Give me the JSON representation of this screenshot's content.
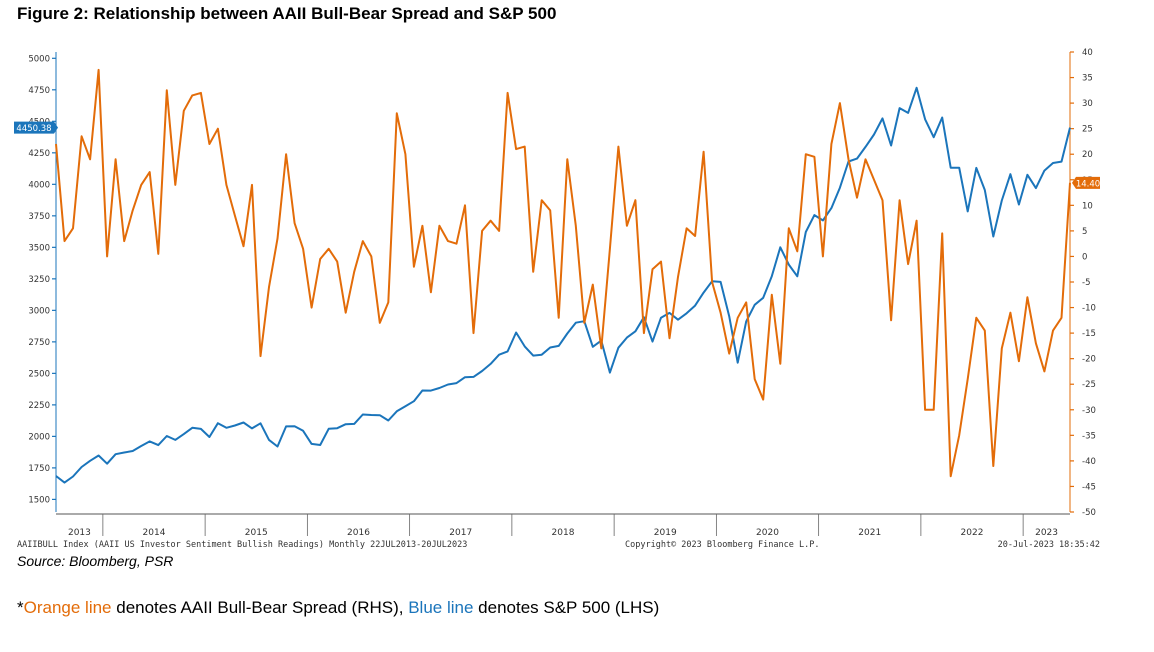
{
  "figure_title": "Figure 2: Relationship between AAII Bull-Bear Spread and S&P 500",
  "source_line": "Source: Bloomberg, PSR",
  "note": {
    "prefix": "*",
    "orange_label": "Orange line",
    "orange_text": " denotes AAII Bull-Bear Spread (RHS), ",
    "blue_label": "Blue line",
    "blue_text": " denotes S&P 500 (LHS)"
  },
  "footer": {
    "left": "AAIIBULL Index (AAII US Investor Sentiment Bullish Readings)  Monthly 22JUL2013-20JUL2023",
    "center": "Copyright© 2023 Bloomberg Finance L.P.",
    "right": "20-Jul-2023 18:35:42"
  },
  "chart_data": {
    "type": "line",
    "start_month": "2013-07",
    "end_month": "2023-07",
    "x_labels": [
      "2013",
      "2014",
      "2015",
      "2016",
      "2017",
      "2018",
      "2019",
      "2020",
      "2021",
      "2022",
      "2023"
    ],
    "y_left": {
      "ticks": [
        1500,
        1750,
        2000,
        2250,
        2500,
        2750,
        3000,
        3250,
        3500,
        3750,
        4000,
        4250,
        4500,
        4750,
        5000
      ],
      "min": 1400,
      "max": 5050
    },
    "y_right": {
      "ticks": [
        -50,
        -45,
        -40,
        -35,
        -30,
        -25,
        -20,
        -15,
        -10,
        -5,
        0,
        5,
        10,
        15,
        20,
        25,
        30,
        35,
        40
      ],
      "min": -50,
      "max": 40
    },
    "grid": false,
    "series": [
      {
        "name": "S&P 500",
        "axis": "left",
        "color": "#1b75bb",
        "last_value_label": "4450.38",
        "values": [
          1686,
          1633,
          1682,
          1757,
          1806,
          1848,
          1783,
          1859,
          1872,
          1884,
          1924,
          1960,
          1931,
          2003,
          1972,
          2018,
          2068,
          2059,
          1995,
          2105,
          2068,
          2086,
          2110,
          2063,
          2104,
          1972,
          1920,
          2079,
          2080,
          2044,
          1940,
          1932,
          2060,
          2065,
          2097,
          2099,
          2174,
          2170,
          2168,
          2126,
          2199,
          2239,
          2279,
          2364,
          2363,
          2384,
          2412,
          2423,
          2470,
          2472,
          2519,
          2575,
          2648,
          2674,
          2824,
          2714,
          2641,
          2648,
          2705,
          2718,
          2816,
          2902,
          2914,
          2711,
          2760,
          2506,
          2704,
          2784,
          2834,
          2946,
          2752,
          2942,
          2980,
          2926,
          2977,
          3038,
          3141,
          3231,
          3226,
          2954,
          2585,
          2912,
          3044,
          3100,
          3271,
          3500,
          3363,
          3270,
          3622,
          3756,
          3714,
          3811,
          3973,
          4181,
          4204,
          4297,
          4395,
          4523,
          4308,
          4605,
          4567,
          4766,
          4516,
          4374,
          4530,
          4132,
          4132,
          3785,
          4130,
          3955,
          3586,
          3872,
          4080,
          3840,
          4076,
          3970,
          4109,
          4169,
          4180,
          4450
        ]
      },
      {
        "name": "AAII Bull-Bear Spread",
        "axis": "right",
        "color": "#e36c09",
        "last_value_label": "14.40",
        "values": [
          22,
          3,
          5.5,
          23.5,
          19,
          36.5,
          0,
          19,
          3,
          9,
          14,
          16.5,
          0.5,
          32.5,
          14,
          28.5,
          31.5,
          32,
          22,
          25,
          14,
          8,
          2,
          14,
          -19.5,
          -6,
          3.5,
          20,
          6.5,
          1.5,
          -10,
          -0.5,
          1.5,
          -1,
          -11,
          -3,
          3,
          0,
          -13,
          -9,
          28,
          20,
          -2,
          6,
          -7,
          6,
          3,
          2.5,
          10,
          -15,
          5,
          7,
          5,
          32,
          21,
          21.5,
          -3,
          11,
          9,
          -12,
          19,
          6,
          -13,
          -5.5,
          -18,
          1.5,
          21.5,
          6,
          11,
          -15,
          -2.5,
          -1,
          -16,
          -4,
          5.5,
          4,
          20.5,
          -5,
          -11,
          -19,
          -12,
          -9,
          -24,
          -28,
          -7.5,
          -21,
          5.5,
          1,
          20,
          19.5,
          0,
          22,
          30,
          19,
          11.5,
          19,
          15,
          11,
          -12.5,
          11,
          -1.5,
          7,
          -30,
          -30,
          4.5,
          -43,
          -35,
          -24,
          -12,
          -14.5,
          -41,
          -18,
          -11,
          -20.5,
          -8,
          -17,
          -22.5,
          -14.5,
          -12,
          14.4
        ]
      }
    ]
  }
}
